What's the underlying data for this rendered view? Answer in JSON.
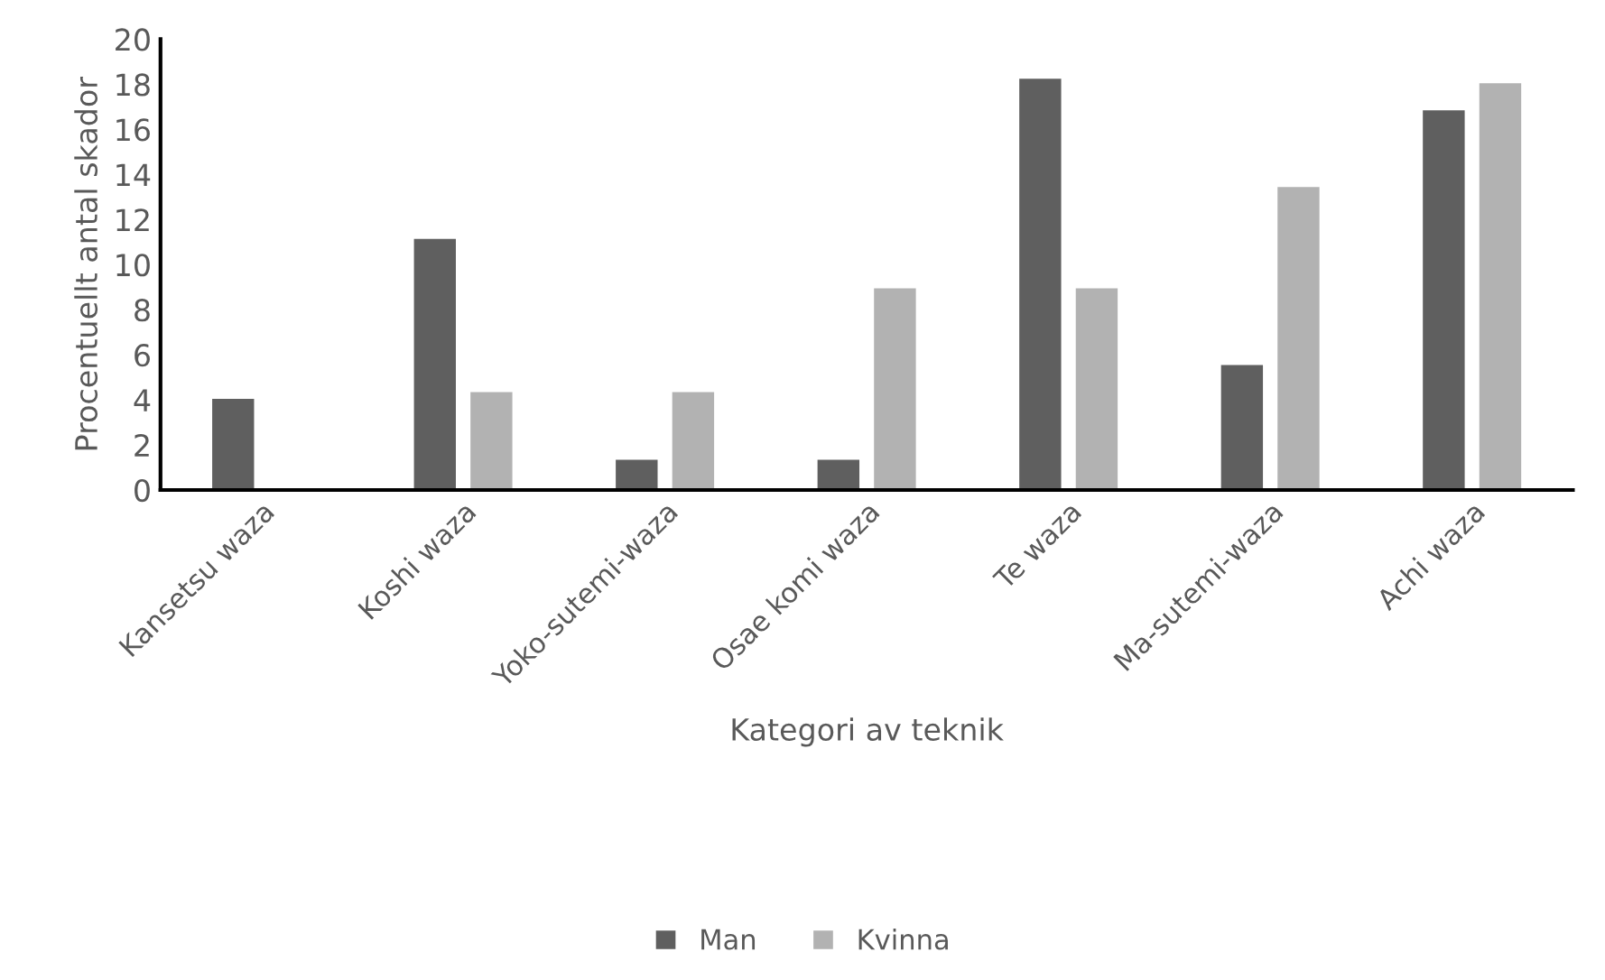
{
  "chart_data": {
    "type": "bar",
    "xlabel": "Kategori av teknik",
    "ylabel": "Procentuellt antal skador",
    "categories": [
      "Kansetsu waza",
      "Koshi waza",
      "Yoko-sutemi-waza",
      "Osae komi waza",
      "Te waza",
      "Ma-sutemi-waza",
      "Achi waza"
    ],
    "series": [
      {
        "name": "Man",
        "color": "#5f5f5f",
        "values": [
          4.1,
          11.2,
          1.4,
          1.4,
          18.3,
          5.6,
          16.9
        ]
      },
      {
        "name": "Kvinna",
        "color": "#b2b2b2",
        "values": [
          null,
          4.4,
          4.4,
          9.0,
          9.0,
          13.5,
          18.1
        ]
      }
    ],
    "ylim": [
      0,
      20
    ],
    "yticks": [
      0,
      2,
      4,
      6,
      8,
      10,
      12,
      14,
      16,
      18,
      20
    ],
    "grid": false,
    "legend": "bottom"
  }
}
